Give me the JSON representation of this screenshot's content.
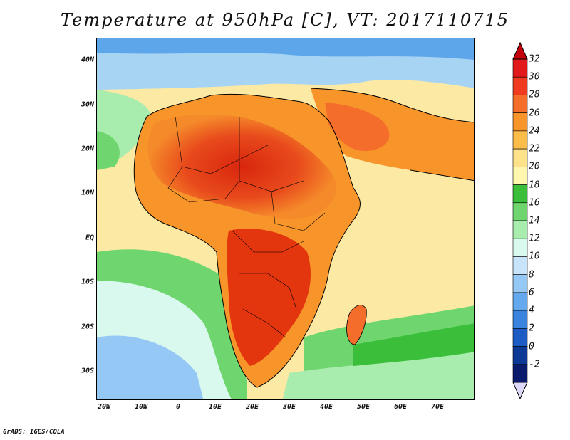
{
  "title": "Temperature at 950hPa [C], VT: 2017110715",
  "lat_labels": [
    "40N",
    "30N",
    "20N",
    "10N",
    "EQ",
    "10S",
    "20S",
    "30S"
  ],
  "lon_labels": [
    "20W",
    "10W",
    "0",
    "10E",
    "20E",
    "30E",
    "40E",
    "50E",
    "60E",
    "70E"
  ],
  "colorbar": {
    "ticks": [
      "32",
      "30",
      "28",
      "26",
      "24",
      "22",
      "20",
      "18",
      "16",
      "14",
      "12",
      "10",
      "8",
      "6",
      "4",
      "2",
      "0",
      "-2"
    ],
    "colors": [
      "#e31a1c",
      "#f03b20",
      "#f46d2a",
      "#f8952a",
      "#fbbd4a",
      "#fde28a",
      "#fff7b0",
      "#3bbf3b",
      "#6fd66f",
      "#a8ecae",
      "#d9f8ee",
      "#c8e4fb",
      "#96c8f6",
      "#64a8ee",
      "#3a84e0",
      "#1c5cc4",
      "#0c3896",
      "#0a1a6c"
    ],
    "top_color": "#c4000c",
    "bottom_color": "#dcd8f8"
  },
  "footer": "GrADS: IGES/COLA"
}
